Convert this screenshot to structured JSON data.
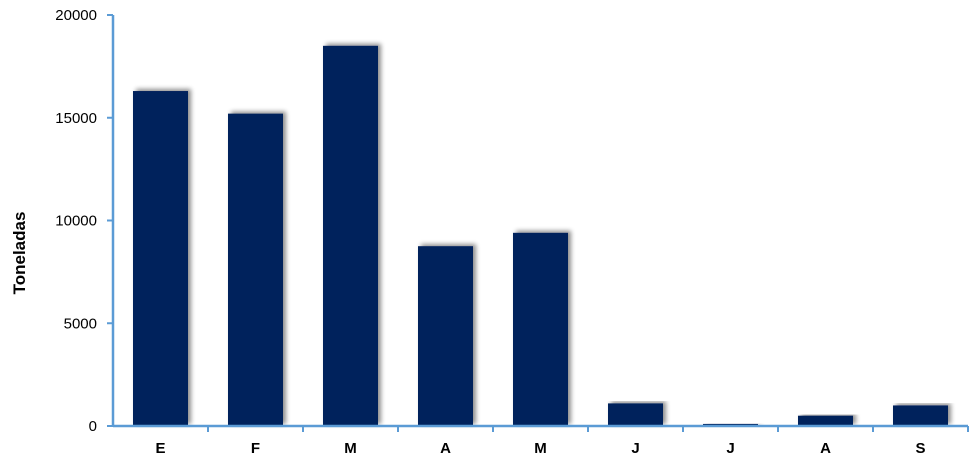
{
  "chart_data": {
    "type": "bar",
    "categories": [
      "E",
      "F",
      "M",
      "A",
      "M",
      "J",
      "J",
      "A",
      "S"
    ],
    "values": [
      16300,
      15200,
      18500,
      8750,
      9400,
      1100,
      100,
      500,
      1000
    ],
    "title": "",
    "xlabel": "",
    "ylabel": "Toneladas",
    "ylim": [
      0,
      20000
    ],
    "yticks": [
      0,
      5000,
      10000,
      15000,
      20000
    ],
    "grid": false,
    "legend": "none",
    "colors": {
      "bar": "#00205b",
      "axis": "#5b9bd5"
    }
  }
}
